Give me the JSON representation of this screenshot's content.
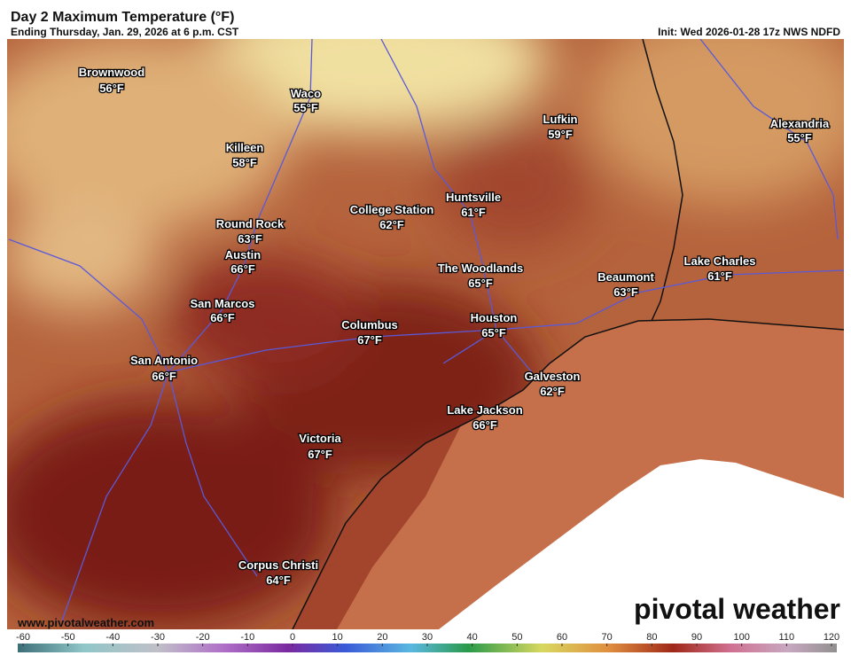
{
  "header": {
    "title": "Day 2 Maximum Temperature (°F)",
    "subtitle": "Ending Thursday, Jan. 29, 2026 at 6 p.m. CST",
    "init": "Init: Wed 2026-01-28 17z NWS NDFD"
  },
  "cities": [
    {
      "name": "Brownwood",
      "temp": "56°F"
    },
    {
      "name": "Waco",
      "temp": "55°F"
    },
    {
      "name": "Killeen",
      "temp": "58°F"
    },
    {
      "name": "College Station",
      "temp": "62°F"
    },
    {
      "name": "Huntsville",
      "temp": "61°F"
    },
    {
      "name": "Lufkin",
      "temp": "59°F"
    },
    {
      "name": "Alexandria",
      "temp": "55°F"
    },
    {
      "name": "Round Rock",
      "temp": "63°F"
    },
    {
      "name": "Austin",
      "temp": "66°F"
    },
    {
      "name": "The Woodlands",
      "temp": "65°F"
    },
    {
      "name": "Beaumont",
      "temp": "63°F"
    },
    {
      "name": "Lake Charles",
      "temp": "61°F"
    },
    {
      "name": "San Marcos",
      "temp": "66°F"
    },
    {
      "name": "Columbus",
      "temp": "67°F"
    },
    {
      "name": "Houston",
      "temp": "65°F"
    },
    {
      "name": "San Antonio",
      "temp": "66°F"
    },
    {
      "name": "Galveston",
      "temp": "62°F"
    },
    {
      "name": "Lake Jackson",
      "temp": "66°F"
    },
    {
      "name": "Victoria",
      "temp": "67°F"
    },
    {
      "name": "Corpus Christi",
      "temp": "64°F"
    }
  ],
  "colorbar": {
    "range": [
      -60,
      120
    ],
    "ticks": [
      -60,
      -50,
      -40,
      -30,
      -20,
      -10,
      0,
      10,
      20,
      30,
      40,
      50,
      60,
      70,
      80,
      90,
      100,
      110,
      120
    ]
  },
  "watermark": "www.pivotalweather.com",
  "brand": "pivotal weather"
}
